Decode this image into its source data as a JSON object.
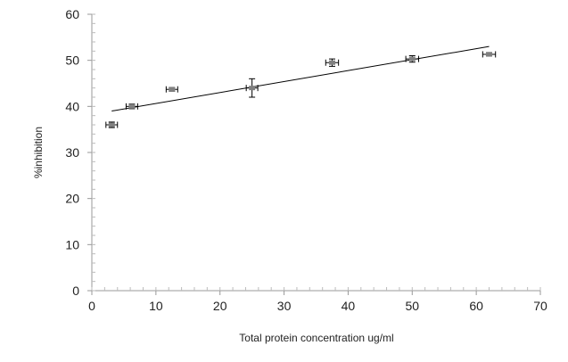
{
  "chart_data": {
    "type": "scatter",
    "xlabel": "Total protein concentration ug/ml",
    "ylabel": "%inhibition",
    "xlim": [
      0,
      70
    ],
    "ylim": [
      0,
      60
    ],
    "xticks": [
      "0",
      "10",
      "20",
      "30",
      "40",
      "50",
      "60",
      "70"
    ],
    "yticks": [
      "0",
      "10",
      "20",
      "30",
      "40",
      "50",
      "60"
    ],
    "grid": false,
    "series": [
      {
        "points": [
          {
            "x": 3.1,
            "y": 36.0,
            "x_err": 0.9,
            "y_err": 0.6
          },
          {
            "x": 6.25,
            "y": 40.0,
            "x_err": 0.9,
            "y_err": 0.5
          },
          {
            "x": 12.5,
            "y": 43.7,
            "x_err": 0.9,
            "y_err": 0.4
          },
          {
            "x": 25.0,
            "y": 44.0,
            "x_err": 0.9,
            "y_err": 2.0
          },
          {
            "x": 37.5,
            "y": 49.5,
            "x_err": 1.0,
            "y_err": 0.8
          },
          {
            "x": 50.0,
            "y": 50.3,
            "x_err": 1.0,
            "y_err": 0.7
          },
          {
            "x": 62.0,
            "y": 51.3,
            "x_err": 1.0,
            "y_err": 0.4
          }
        ],
        "color": "#808080"
      }
    ],
    "trendline": {
      "x": [
        3.1,
        62.0
      ],
      "y": [
        39.0,
        53.0
      ],
      "color": "#000000"
    }
  }
}
